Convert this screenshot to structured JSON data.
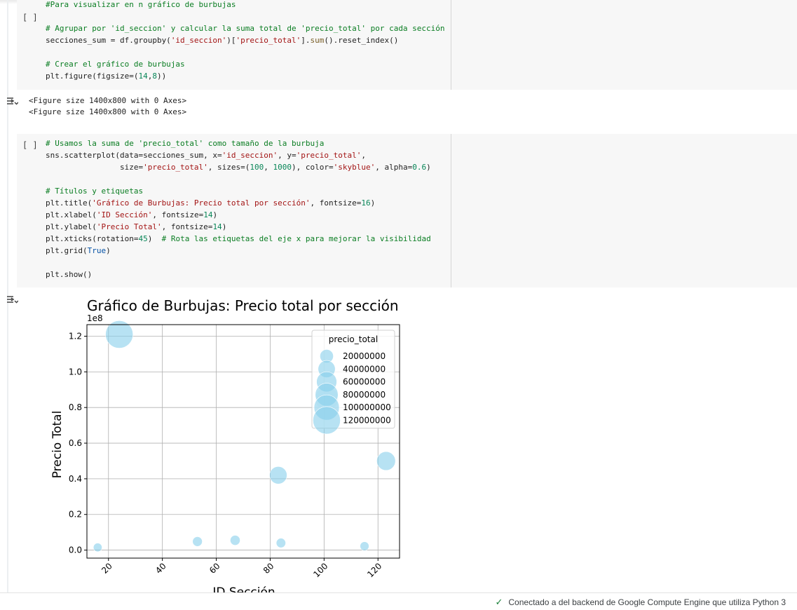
{
  "cell1": {
    "run_label": "[ ]",
    "lines": [
      [
        {
          "t": "#Para visualizar en n gráfico de burbujas",
          "c": "c"
        }
      ],
      [],
      [
        {
          "t": "# Agrupar por 'id_seccion' y calcular la suma total de 'precio_total' por cada sección",
          "c": "c"
        }
      ],
      [
        {
          "t": "secciones_sum = df.groupby("
        },
        {
          "t": "'id_seccion'",
          "c": "s"
        },
        {
          "t": ")["
        },
        {
          "t": "'precio_total'",
          "c": "s"
        },
        {
          "t": "]."
        },
        {
          "t": "sum",
          "c": "f"
        },
        {
          "t": "().reset_index()"
        }
      ],
      [],
      [
        {
          "t": "# Crear el gráfico de burbujas",
          "c": "c"
        }
      ],
      [
        {
          "t": "plt.figure(figsize=("
        },
        {
          "t": "14",
          "c": "n"
        },
        {
          "t": ","
        },
        {
          "t": "8",
          "c": "n"
        },
        {
          "t": "))"
        }
      ]
    ]
  },
  "output1": {
    "lines": [
      "<Figure size 1400x800 with 0 Axes>",
      "<Figure size 1400x800 with 0 Axes>"
    ]
  },
  "cell2": {
    "run_label": "[ ]",
    "lines": [
      [
        {
          "t": "# Usamos la suma de 'precio_total' como tamaño de la burbuja",
          "c": "c"
        }
      ],
      [
        {
          "t": "sns.scatterplot(data=secciones_sum, x="
        },
        {
          "t": "'id_seccion'",
          "c": "s"
        },
        {
          "t": ", y="
        },
        {
          "t": "'precio_total'",
          "c": "s"
        },
        {
          "t": ","
        }
      ],
      [
        {
          "t": "                size="
        },
        {
          "t": "'precio_total'",
          "c": "s"
        },
        {
          "t": ", sizes=("
        },
        {
          "t": "100",
          "c": "n"
        },
        {
          "t": ", "
        },
        {
          "t": "1000",
          "c": "n"
        },
        {
          "t": "), color="
        },
        {
          "t": "'skyblue'",
          "c": "s"
        },
        {
          "t": ", alpha="
        },
        {
          "t": "0.6",
          "c": "n"
        },
        {
          "t": ")"
        }
      ],
      [],
      [
        {
          "t": "# Títulos y etiquetas",
          "c": "c"
        }
      ],
      [
        {
          "t": "plt.title("
        },
        {
          "t": "'Gráfico de Burbujas: Precio total por sección'",
          "c": "s"
        },
        {
          "t": ", fontsize="
        },
        {
          "t": "16",
          "c": "n"
        },
        {
          "t": ")"
        }
      ],
      [
        {
          "t": "plt.xlabel("
        },
        {
          "t": "'ID Sección'",
          "c": "s"
        },
        {
          "t": ", fontsize="
        },
        {
          "t": "14",
          "c": "n"
        },
        {
          "t": ")"
        }
      ],
      [
        {
          "t": "plt.ylabel("
        },
        {
          "t": "'Precio Total'",
          "c": "s"
        },
        {
          "t": ", fontsize="
        },
        {
          "t": "14",
          "c": "n"
        },
        {
          "t": ")"
        }
      ],
      [
        {
          "t": "plt.xticks(rotation="
        },
        {
          "t": "45",
          "c": "n"
        },
        {
          "t": ")  "
        },
        {
          "t": "# Rota las etiquetas del eje x para mejorar la visibilidad",
          "c": "c"
        }
      ],
      [
        {
          "t": "plt.grid("
        },
        {
          "t": "True",
          "c": "b"
        },
        {
          "t": ")"
        }
      ],
      [],
      [
        {
          "t": "plt.show()"
        }
      ]
    ]
  },
  "chart_data": {
    "type": "scatter",
    "title": "Gráfico de Burbujas: Precio total por sección",
    "xlabel": "ID Sección",
    "ylabel": "Precio Total",
    "y_offset_label": "1e8",
    "xlim": [
      12,
      128
    ],
    "ylim": [
      -0.045,
      1.265
    ],
    "x_ticks": [
      20,
      40,
      60,
      80,
      100,
      120
    ],
    "y_ticks": [
      0.0,
      0.2,
      0.4,
      0.6,
      0.8,
      1.0,
      1.2
    ],
    "y_tick_labels": [
      "0.0",
      "0.2",
      "0.4",
      "0.6",
      "0.8",
      "1.0",
      "1.2"
    ],
    "grid": true,
    "point_color": "#87ceeb",
    "alpha": 0.6,
    "size_range": [
      100,
      1000
    ],
    "points": [
      {
        "x": 16,
        "y": 0.015
      },
      {
        "x": 24,
        "y": 1.21
      },
      {
        "x": 53,
        "y": 0.048
      },
      {
        "x": 67,
        "y": 0.055
      },
      {
        "x": 83,
        "y": 0.42
      },
      {
        "x": 84,
        "y": 0.04
      },
      {
        "x": 101,
        "y": 0.85
      },
      {
        "x": 115,
        "y": 0.022
      },
      {
        "x": 123,
        "y": 0.5
      }
    ],
    "legend": {
      "title": "precio_total",
      "placement": "upper right",
      "entries": [
        {
          "label": "20000000",
          "value": 20000000
        },
        {
          "label": "40000000",
          "value": 40000000
        },
        {
          "label": "60000000",
          "value": 60000000
        },
        {
          "label": "80000000",
          "value": 80000000
        },
        {
          "label": "100000000",
          "value": 100000000
        },
        {
          "label": "120000000",
          "value": 120000000
        }
      ]
    }
  },
  "status_bar": {
    "text": "Conectado a del backend de Google Compute Engine que utiliza Python 3"
  }
}
